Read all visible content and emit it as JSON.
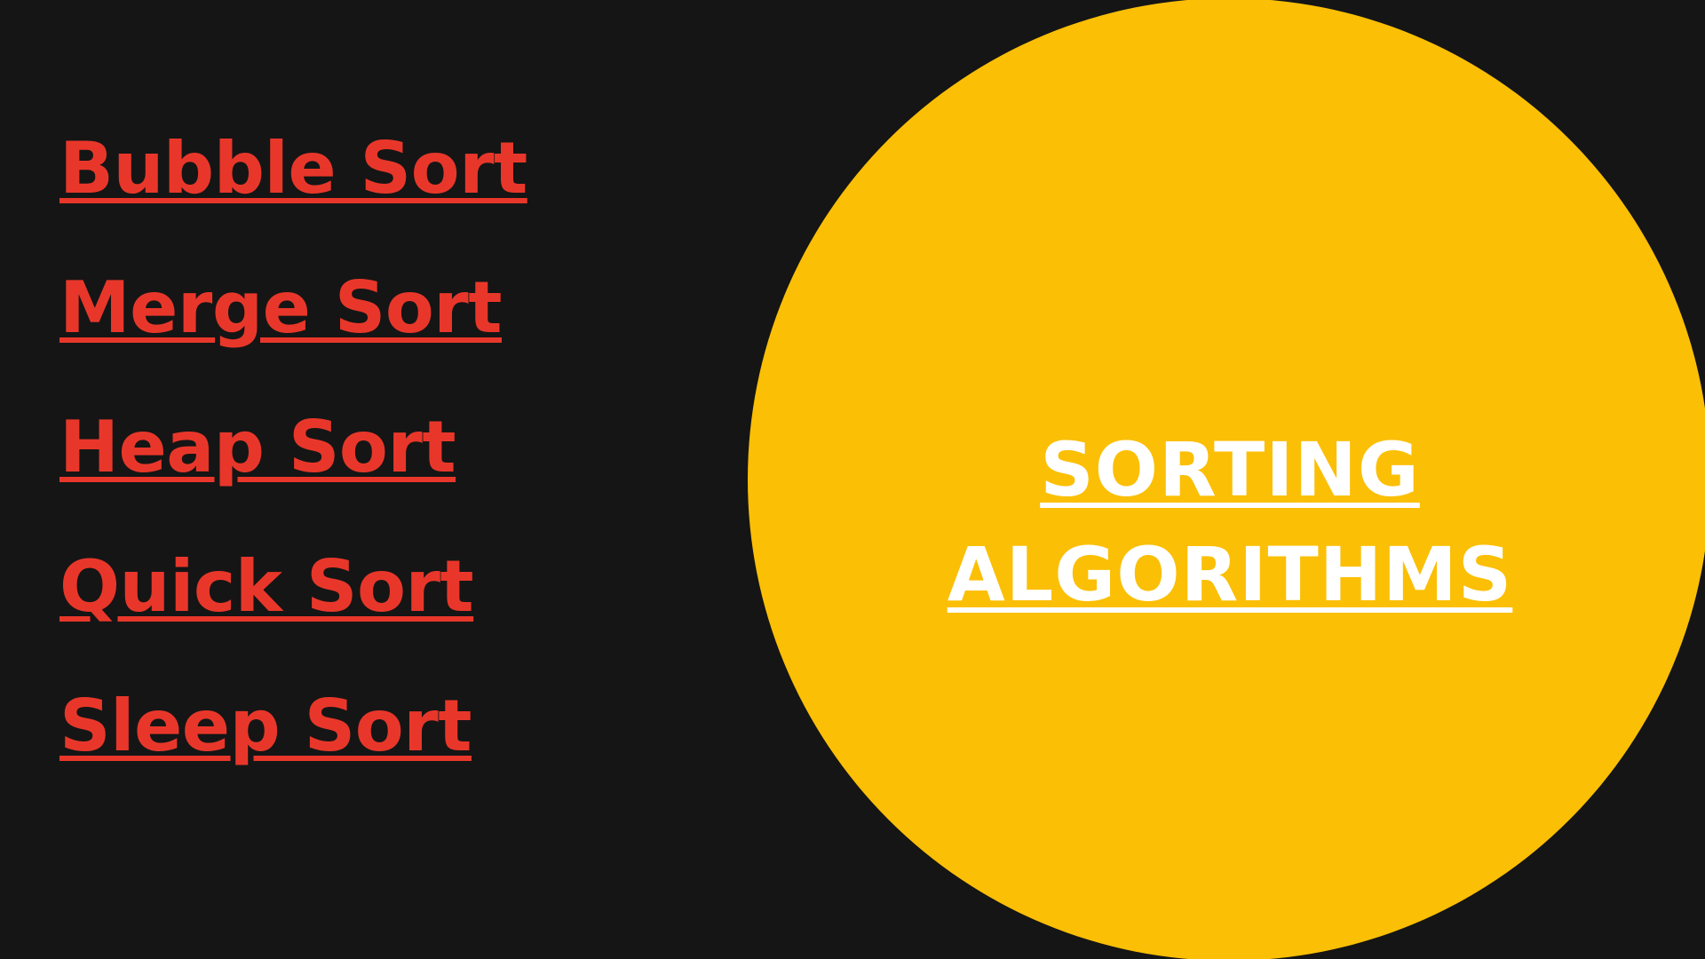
{
  "links": [
    {
      "label": "Bubble Sort"
    },
    {
      "label": "Merge Sort"
    },
    {
      "label": "Heap Sort"
    },
    {
      "label": "Quick Sort"
    },
    {
      "label": "Sleep Sort"
    }
  ],
  "circle": {
    "title_line1": "SORTING",
    "title_line2": "ALGORITHMS"
  },
  "colors": {
    "background": "#151515",
    "link": "#e8372a",
    "circle": "#fbbf05",
    "title": "#ffffff"
  }
}
